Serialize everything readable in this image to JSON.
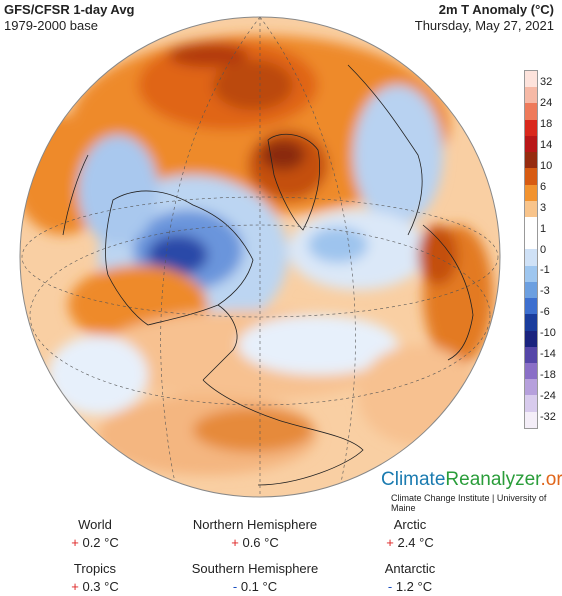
{
  "header": {
    "title": "GFS/CFSR 1-day Avg",
    "base": "1979-2000 base",
    "metric": "2m T Anomaly (°C)",
    "date": "Thursday, May 27, 2021"
  },
  "scale": {
    "labels": [
      "32",
      "24",
      "18",
      "14",
      "10",
      "6",
      "3",
      "1",
      "0",
      "-1",
      "-3",
      "-6",
      "-10",
      "-14",
      "-18",
      "-24",
      "-32"
    ],
    "colors": [
      "#fde3dc",
      "#f6b9a6",
      "#ee7a5a",
      "#d9281c",
      "#b81718",
      "#962b0f",
      "#d75b12",
      "#f2932f",
      "#f8c48b",
      "#ffffff",
      "#ffffff",
      "#cfe1f6",
      "#9ec6ef",
      "#6c9fe0",
      "#3d6fcf",
      "#1a3c9c",
      "#1a237e",
      "#5546a8",
      "#8a6fc7",
      "#b6a0dc",
      "#d8cbed",
      "#f4eef8"
    ]
  },
  "branding": {
    "name_part1": "Climate",
    "name_part2": "Reanalyzer",
    "name_part3": ".org",
    "subtitle": "Climate Change Institute | University of Maine"
  },
  "stats": [
    {
      "label": "World",
      "sign": "+",
      "value": "0.2 °C"
    },
    {
      "label": "Northern Hemisphere",
      "sign": "+",
      "value": "0.6 °C"
    },
    {
      "label": "Arctic",
      "sign": "+",
      "value": "2.4 °C"
    },
    {
      "label": "Tropics",
      "sign": "+",
      "value": "0.3 °C"
    },
    {
      "label": "Southern Hemisphere",
      "sign": "-",
      "value": "0.1 °C"
    },
    {
      "label": "Antarctic",
      "sign": "-",
      "value": "1.2 °C"
    }
  ]
}
